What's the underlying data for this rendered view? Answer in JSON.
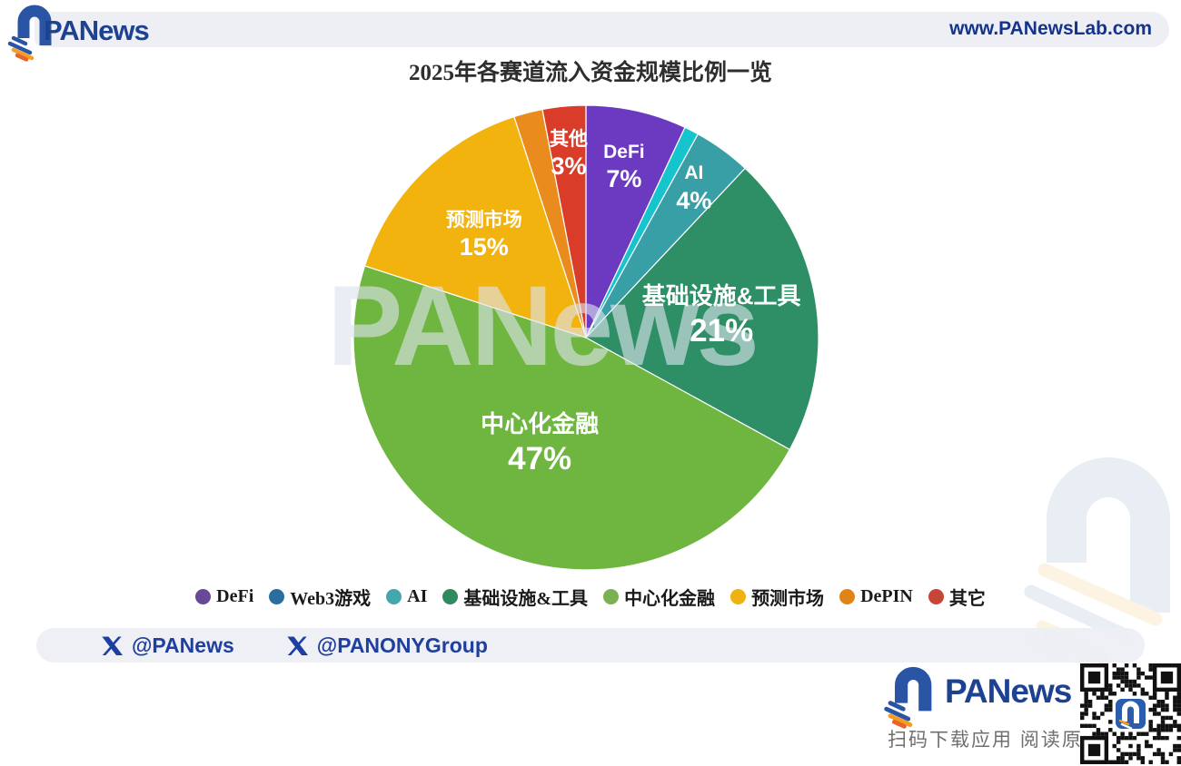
{
  "header": {
    "brand": "PANews",
    "url": "www.PANewsLab.com"
  },
  "title": "2025年各赛道流入资金规模比例一览",
  "chart_data": {
    "type": "pie",
    "title": "2025年各赛道流入资金规模比例一览",
    "units": "percent",
    "start_angle_deg_from_top": 0,
    "direction": "clockwise",
    "watermark": "PANews",
    "legend_position": "bottom",
    "series": [
      {
        "name": "DeFi",
        "value": 7,
        "color": "#6b3ac1",
        "show_label": true,
        "label_r": 0.75
      },
      {
        "name": "Web3游戏",
        "value": 1,
        "color": "#16c4cd",
        "show_label": false,
        "label_r": 0
      },
      {
        "name": "AI",
        "value": 4,
        "color": "#399fa6",
        "show_label": true,
        "label_r": 0.79
      },
      {
        "name": "基础设施&工具",
        "value": 21,
        "color": "#2e8e66",
        "show_label": true,
        "label_r": 0.59
      },
      {
        "name": "中心化金融",
        "value": 47,
        "color": "#6fb640",
        "show_label": true,
        "label_r": 0.5
      },
      {
        "name": "预测市场",
        "value": 15,
        "color": "#f3b30f",
        "show_label": true,
        "label_r": 0.62
      },
      {
        "name": "DePIN",
        "value": 2,
        "color": "#ea8b1e",
        "show_label": false,
        "label_r": 0
      },
      {
        "name": "其他",
        "value": 3,
        "color": "#d93d2a",
        "show_label": true,
        "label_r": 0.79
      }
    ],
    "legend": [
      {
        "label": "DeFi",
        "color": "#6a4799"
      },
      {
        "label": "Web3游戏",
        "color": "#2b6d9f"
      },
      {
        "label": "AI",
        "color": "#43a7ae"
      },
      {
        "label": "基础设施&工具",
        "color": "#2e8a60"
      },
      {
        "label": "中心化金融",
        "color": "#7ab253"
      },
      {
        "label": "预测市场",
        "color": "#eeb211"
      },
      {
        "label": "DePIN",
        "color": "#e08418"
      },
      {
        "label": "其它",
        "color": "#c74536"
      }
    ]
  },
  "footer": {
    "handles": [
      {
        "label": "@PANews"
      },
      {
        "label": "@PANONYGroup"
      }
    ]
  },
  "bottom": {
    "brand": "PANews",
    "tagline": "扫码下载应用 阅读原文"
  }
}
